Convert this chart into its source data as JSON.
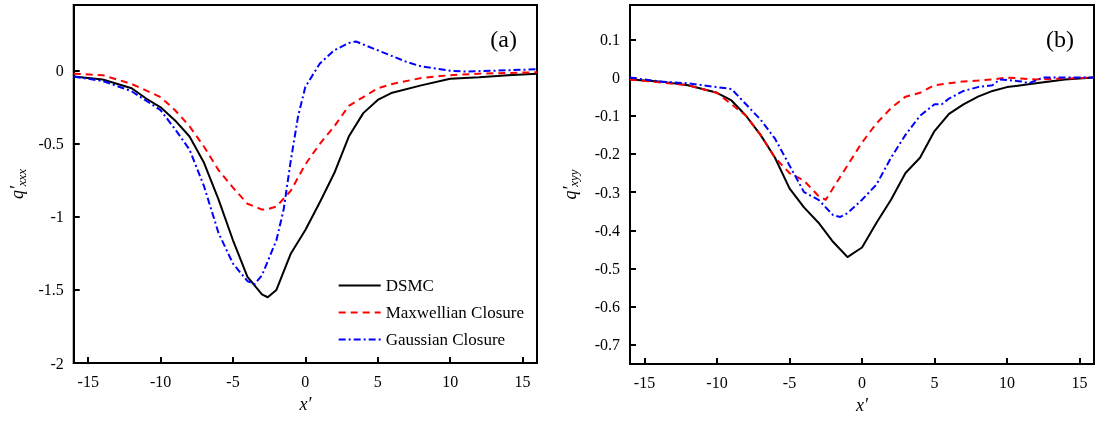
{
  "chart_data": [
    {
      "type": "line",
      "ylabel": "q′$_{xxx}$",
      "xlabel": "x′",
      "annotations": [
        "(a)"
      ],
      "xlim": [
        -16,
        16
      ],
      "xticks": [
        -15,
        -10,
        -5,
        0,
        5,
        10,
        15
      ],
      "ylim": [
        -2,
        0.45
      ],
      "yticks": [
        -2,
        -1.5,
        -1,
        -0.5,
        0
      ],
      "grid": false,
      "legend": "bottom right",
      "marker": "none",
      "series": [
        {
          "name": "DSMC",
          "color": "#000000",
          "line_style": "solid",
          "x": [
            -16,
            -14,
            -12,
            -11,
            -10,
            -9,
            -8,
            -7,
            -6,
            -5,
            -4,
            -3,
            -2.6,
            -2,
            -1,
            0,
            1,
            2,
            3,
            4,
            5,
            6,
            8,
            10,
            12,
            14,
            16
          ],
          "values": [
            -0.04,
            -0.06,
            -0.12,
            -0.19,
            -0.25,
            -0.34,
            -0.45,
            -0.63,
            -0.88,
            -1.16,
            -1.41,
            -1.53,
            -1.55,
            -1.5,
            -1.25,
            -1.09,
            -0.9,
            -0.7,
            -0.45,
            -0.29,
            -0.2,
            -0.15,
            -0.1,
            -0.055,
            -0.045,
            -0.03,
            -0.02
          ]
        },
        {
          "name": "Maxwellian Closure",
          "color": "#ff0000",
          "line_style": "dashed",
          "x": [
            -16,
            -14,
            -12,
            -10,
            -9,
            -8,
            -7,
            -6,
            -5,
            -4,
            -3,
            -2.7,
            -2,
            -1,
            0,
            1,
            2,
            3,
            4,
            5,
            6,
            8,
            10,
            12,
            16
          ],
          "values": [
            -0.02,
            -0.03,
            -0.09,
            -0.18,
            -0.27,
            -0.38,
            -0.52,
            -0.68,
            -0.8,
            -0.91,
            -0.95,
            -0.95,
            -0.93,
            -0.82,
            -0.64,
            -0.5,
            -0.38,
            -0.24,
            -0.18,
            -0.12,
            -0.09,
            -0.05,
            -0.03,
            -0.02,
            -0.01
          ]
        },
        {
          "name": "Gaussian Closure",
          "color": "#0000ff",
          "line_style": "dashdot",
          "x": [
            -16,
            -14,
            -12,
            -10,
            -9,
            -8,
            -7,
            -6,
            -5,
            -4,
            -3.5,
            -3,
            -2,
            -1.5,
            -1,
            -0.5,
            0,
            1,
            2,
            3,
            3.5,
            4,
            5,
            6,
            7,
            8,
            10,
            11,
            13,
            16
          ],
          "values": [
            -0.04,
            -0.07,
            -0.14,
            -0.27,
            -0.4,
            -0.54,
            -0.79,
            -1.11,
            -1.32,
            -1.44,
            -1.46,
            -1.4,
            -1.16,
            -0.95,
            -0.61,
            -0.31,
            -0.11,
            0.05,
            0.14,
            0.19,
            0.2,
            0.18,
            0.14,
            0.1,
            0.06,
            0.03,
            0,
            -0.005,
            0,
            0.01
          ]
        }
      ]
    },
    {
      "type": "line",
      "ylabel": "q′$_{xyy}$",
      "xlabel": "x′",
      "annotations": [
        "(b)"
      ],
      "xlim": [
        -16,
        16
      ],
      "xticks": [
        -15,
        -10,
        -5,
        0,
        5,
        10,
        15
      ],
      "ylim": [
        -0.75,
        0.19
      ],
      "yticks": [
        -0.7,
        -0.6,
        -0.5,
        -0.4,
        -0.3,
        -0.2,
        -0.1,
        0,
        0.1
      ],
      "grid": false,
      "legend": false,
      "marker": "none",
      "series": [
        {
          "color": "#000000",
          "line_style": "solid",
          "x": [
            -16,
            -14,
            -12,
            -10,
            -9,
            -8,
            -7,
            -6,
            -5,
            -4,
            -3,
            -2,
            -1,
            0,
            1,
            2,
            3,
            4,
            5,
            6,
            7,
            8,
            9,
            10,
            12,
            14,
            16
          ],
          "values": [
            -0.005,
            -0.01,
            -0.02,
            -0.04,
            -0.06,
            -0.1,
            -0.15,
            -0.21,
            -0.29,
            -0.34,
            -0.38,
            -0.43,
            -0.47,
            -0.445,
            -0.38,
            -0.32,
            -0.25,
            -0.21,
            -0.14,
            -0.095,
            -0.07,
            -0.05,
            -0.035,
            -0.025,
            -0.015,
            -0.005,
            0
          ]
        },
        {
          "color": "#ff0000",
          "line_style": "dashed",
          "x": [
            -16,
            -12,
            -10,
            -8,
            -7,
            -6,
            -5,
            -4,
            -3,
            -2.5,
            -2,
            -1,
            0,
            1,
            2,
            3,
            4,
            5,
            6,
            7,
            8,
            9,
            10,
            12,
            16
          ],
          "values": [
            -0.005,
            -0.02,
            -0.04,
            -0.1,
            -0.15,
            -0.21,
            -0.25,
            -0.27,
            -0.31,
            -0.32,
            -0.29,
            -0.23,
            -0.17,
            -0.12,
            -0.08,
            -0.05,
            -0.04,
            -0.02,
            -0.015,
            -0.01,
            -0.008,
            -0.005,
            0,
            -0.005,
            0
          ]
        },
        {
          "color": "#0000ff",
          "line_style": "dashdot",
          "x": [
            -16,
            -14,
            -12,
            -10,
            -9,
            -8,
            -7,
            -6,
            -5,
            -4,
            -3,
            -2,
            -1.5,
            -1,
            0,
            1,
            2,
            3,
            4,
            5,
            5.5,
            6,
            7,
            8,
            9,
            9.5,
            11,
            11.5,
            12.5,
            16
          ],
          "values": [
            0,
            -0.01,
            -0.015,
            -0.025,
            -0.03,
            -0.07,
            -0.11,
            -0.16,
            -0.23,
            -0.3,
            -0.32,
            -0.36,
            -0.365,
            -0.355,
            -0.32,
            -0.28,
            -0.21,
            -0.15,
            -0.1,
            -0.07,
            -0.07,
            -0.055,
            -0.035,
            -0.025,
            -0.02,
            -0.005,
            -0.01,
            -0.015,
            0,
            0
          ]
        }
      ]
    }
  ]
}
